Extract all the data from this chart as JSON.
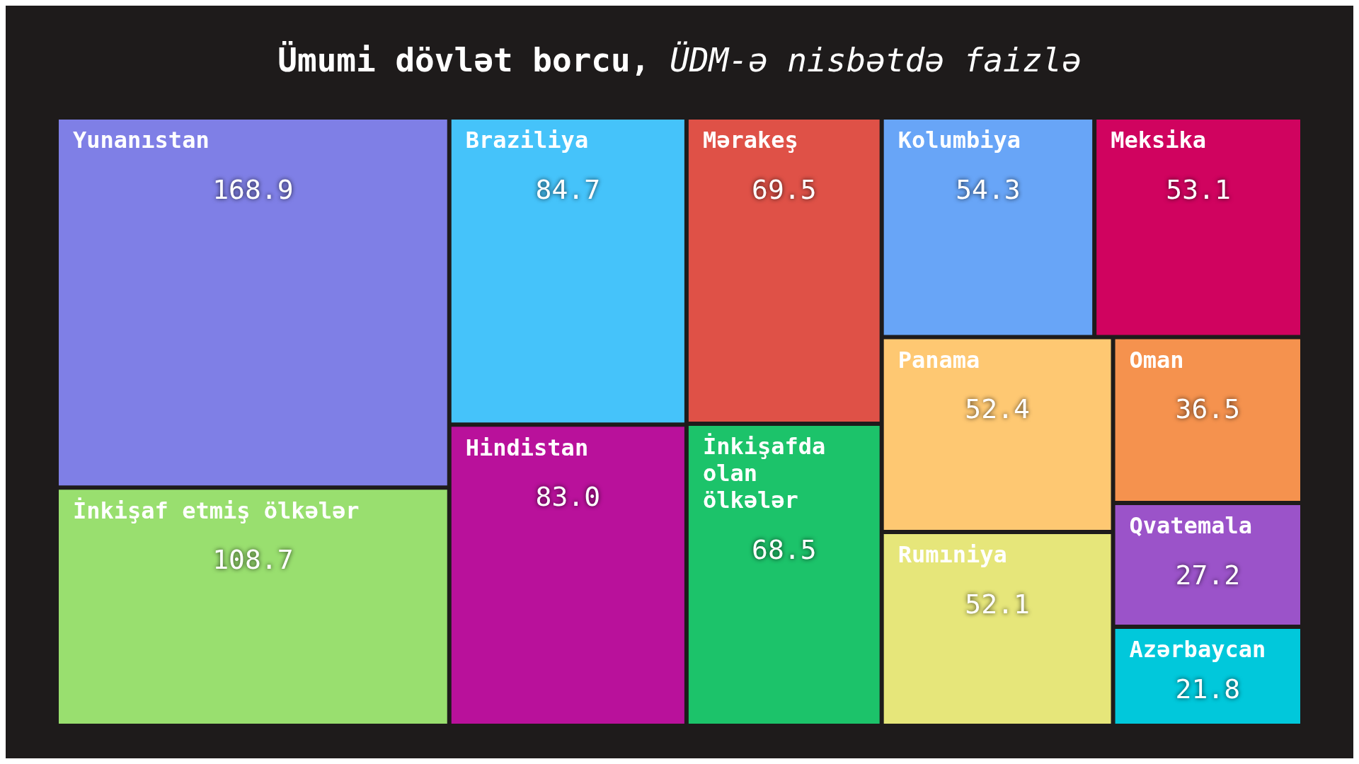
{
  "chart_data": {
    "type": "other",
    "title": "Ümumi dövlət borcu,",
    "subtitle": "ÜDM-ə nisbətdə faizlə",
    "categories": [
      "Yunanıstan",
      "İnkişaf etmiş ölkələr",
      "Braziliya",
      "Hindistan",
      "Mərakeş",
      "İnkişafda olan ölkələr",
      "Kolumbiya",
      "Meksika",
      "Panama",
      "Rumıniya",
      "Oman",
      "Qvatemala",
      "Azərbaycan"
    ],
    "values": [
      168.9,
      108.7,
      84.7,
      83.0,
      69.5,
      68.5,
      54.3,
      53.1,
      52.4,
      52.1,
      36.5,
      27.2,
      21.8
    ],
    "value_labels": [
      "168.9",
      "108.7",
      "84.7",
      "83.0",
      "69.5",
      "68.5",
      "54.3",
      "53.1",
      "52.4",
      "52.1",
      "36.5",
      "27.2",
      "21.8"
    ],
    "colors": [
      "#7f7fe6",
      "#99df6f",
      "#45c3fa",
      "#b9119b",
      "#df5147",
      "#1cc36a",
      "#68a5f7",
      "#d0035f",
      "#fec872",
      "#e6e67a",
      "#f5924e",
      "#9b53c9",
      "#01c8db"
    ]
  }
}
